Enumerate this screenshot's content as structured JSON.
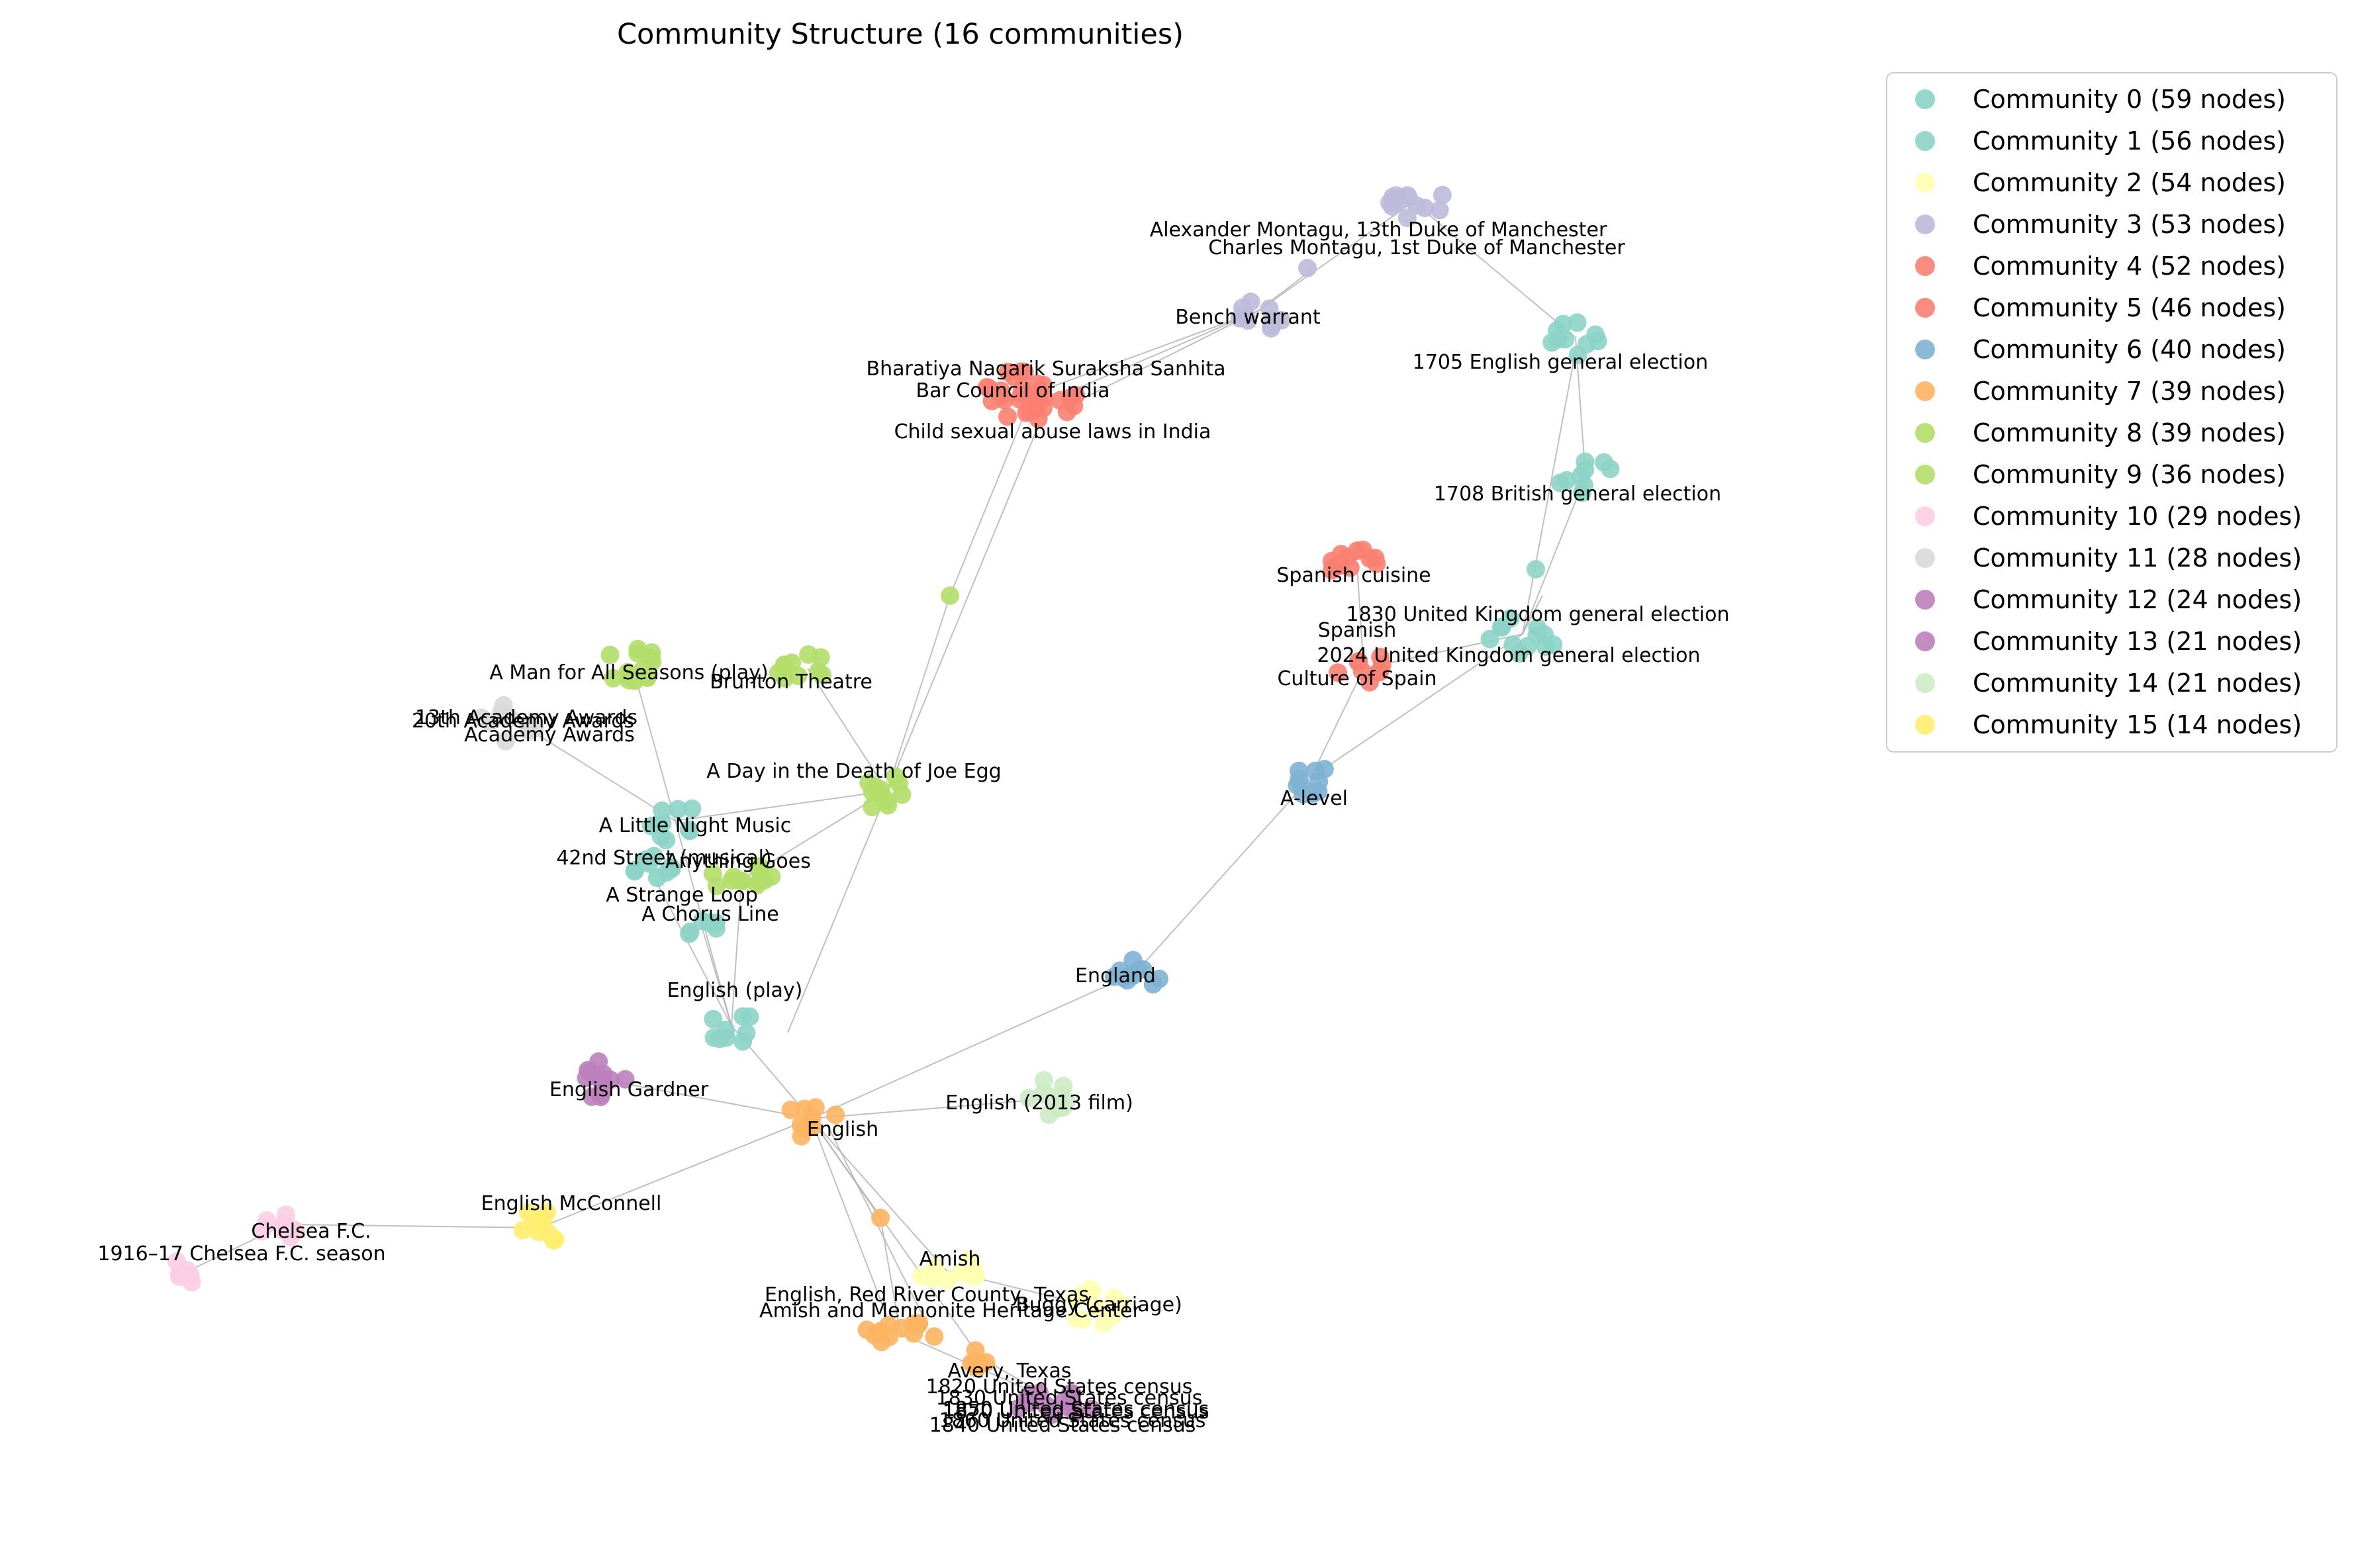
{
  "chart_data": {
    "type": "network",
    "title": "Community Structure (16 communities)",
    "communities": [
      {
        "id": 0,
        "label": "Community 0 (59 nodes)",
        "color": "#8dd3c7"
      },
      {
        "id": 1,
        "label": "Community 1 (56 nodes)",
        "color": "#8dd3c7"
      },
      {
        "id": 2,
        "label": "Community 2 (54 nodes)",
        "color": "#ffffb3"
      },
      {
        "id": 3,
        "label": "Community 3 (53 nodes)",
        "color": "#bebada"
      },
      {
        "id": 4,
        "label": "Community 4 (52 nodes)",
        "color": "#fb8072"
      },
      {
        "id": 5,
        "label": "Community 5 (46 nodes)",
        "color": "#fb8072"
      },
      {
        "id": 6,
        "label": "Community 6 (40 nodes)",
        "color": "#80b1d3"
      },
      {
        "id": 7,
        "label": "Community 7 (39 nodes)",
        "color": "#fdb462"
      },
      {
        "id": 8,
        "label": "Community 8 (39 nodes)",
        "color": "#b3de69"
      },
      {
        "id": 9,
        "label": "Community 9 (36 nodes)",
        "color": "#b3de69"
      },
      {
        "id": 10,
        "label": "Community 10 (29 nodes)",
        "color": "#fccde5"
      },
      {
        "id": 11,
        "label": "Community 11 (28 nodes)",
        "color": "#d9d9d9"
      },
      {
        "id": 12,
        "label": "Community 12 (24 nodes)",
        "color": "#bc80bd"
      },
      {
        "id": 13,
        "label": "Community 13 (21 nodes)",
        "color": "#bc80bd"
      },
      {
        "id": 14,
        "label": "Community 14 (21 nodes)",
        "color": "#ccebc5"
      },
      {
        "id": 15,
        "label": "Community 15 (14 nodes)",
        "color": "#ffed6f"
      }
    ],
    "node_labels": [
      "Alexander Montagu, 13th Duke of Manchester",
      "Charles Montagu, 1st Duke of Manchester",
      "Bench warrant",
      "1705 English general election",
      "Bharatiya Nagarik Suraksha Sanhita",
      "Bar Council of India",
      "Child sexual abuse laws in India",
      "1708 British general election",
      "Spanish cuisine",
      "1830 United Kingdom general election",
      "Spanish",
      "2024 United Kingdom general election",
      "Culture of Spain",
      "A Man for All Seasons (play)",
      "Brunton Theatre",
      "13th Academy Awards",
      "20th Academy Awards",
      "Academy Awards",
      "A Day in the Death of Joe Egg",
      "A-level",
      "A Little Night Music",
      "42nd Street (musical)",
      "Anything Goes",
      "A Strange Loop",
      "A Chorus Line",
      "England",
      "English (play)",
      "English Gardner",
      "English (2013 film)",
      "English",
      "English McConnell",
      "Chelsea F.C.",
      "1916–17 Chelsea F.C. season",
      "Amish",
      "English, Red River County, Texas",
      "Amish and Mennonite Heritage Center",
      "Buggy (carriage)",
      "Avery, Texas",
      "1820 United States census",
      "1830 United States census",
      "1850 United States census",
      "1860 United States census",
      "1870 United States census",
      "1840 United States census"
    ]
  }
}
